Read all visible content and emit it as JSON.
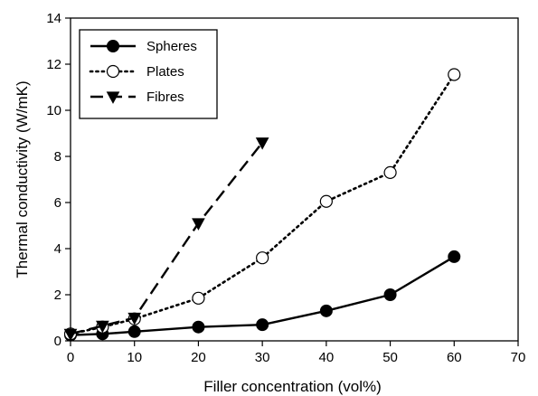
{
  "chart_data": {
    "type": "line",
    "xlabel": "Filler concentration (vol%)",
    "ylabel": "Thermal conductivity (W/mK)",
    "xlim": [
      0,
      70
    ],
    "ylim": [
      0,
      14
    ],
    "xticks": [
      0,
      10,
      20,
      30,
      40,
      50,
      60,
      70
    ],
    "yticks": [
      0,
      2,
      4,
      6,
      8,
      10,
      12,
      14
    ],
    "grid": false,
    "legend_position": "top-left",
    "series": [
      {
        "name": "Spheres",
        "line_style": "solid",
        "marker": "filled-circle",
        "color": "#000000",
        "x": [
          0,
          5,
          10,
          20,
          30,
          40,
          50,
          60
        ],
        "y": [
          0.25,
          0.3,
          0.4,
          0.6,
          0.7,
          1.3,
          2.0,
          3.65
        ]
      },
      {
        "name": "Plates",
        "line_style": "dotted",
        "marker": "open-circle",
        "color": "#000000",
        "x": [
          0,
          5,
          10,
          20,
          30,
          40,
          50,
          60
        ],
        "y": [
          0.3,
          0.6,
          0.95,
          1.85,
          3.6,
          6.05,
          7.3,
          11.55
        ]
      },
      {
        "name": "Fibres",
        "line_style": "dashed",
        "marker": "filled-triangle-down",
        "color": "#000000",
        "x": [
          0,
          5,
          10,
          20,
          30
        ],
        "y": [
          0.3,
          0.65,
          1.0,
          5.1,
          8.6
        ]
      }
    ]
  }
}
